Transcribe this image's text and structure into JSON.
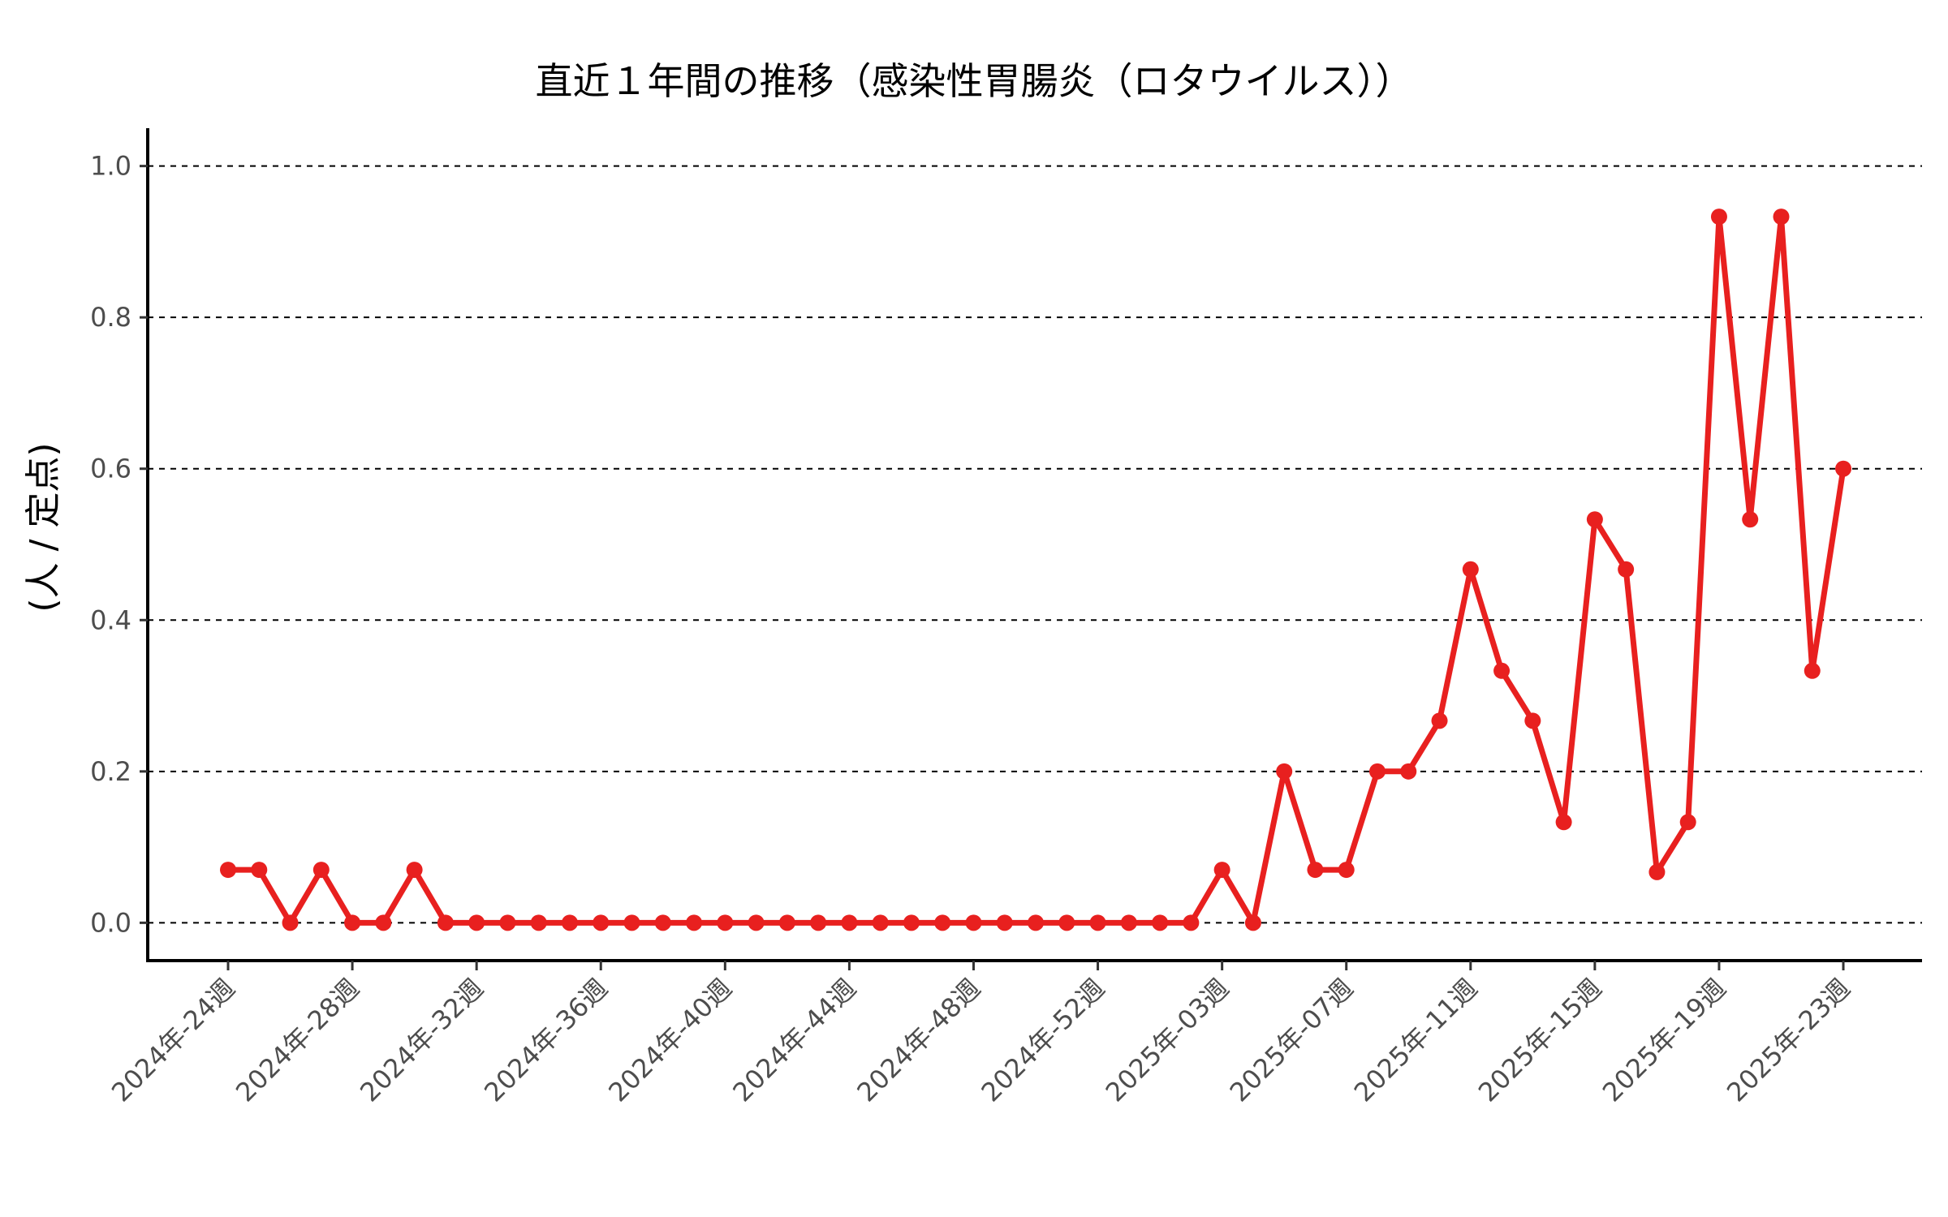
{
  "chart_data": {
    "type": "line",
    "title": "直近１年間の推移（感染性胃腸炎（ロタウイルス））",
    "xlabel": "",
    "ylabel": "(人 / 定点)",
    "ylim": [
      -0.05,
      1.05
    ],
    "yticks": [
      0.0,
      0.2,
      0.4,
      0.6,
      0.8,
      1.0
    ],
    "ytick_labels": [
      "0.0",
      "0.2",
      "0.4",
      "0.6",
      "0.8",
      "1.0"
    ],
    "xtick_labels": [
      "2024年-24週",
      "2024年-28週",
      "2024年-32週",
      "2024年-36週",
      "2024年-40週",
      "2024年-44週",
      "2024年-48週",
      "2024年-52週",
      "2025年-03週",
      "2025年-07週",
      "2025年-11週",
      "2025年-15週",
      "2025年-19週",
      "2025年-23週"
    ],
    "xtick_every": 4,
    "grid": "horizontal dashed",
    "series_color": "#e8201f",
    "series": [
      {
        "values": [
          0.07,
          0.07,
          0.0,
          0.07,
          0.0,
          0.0,
          0.07,
          0.0,
          0.0,
          0.0,
          0.0,
          0.0,
          0.0,
          0.0,
          0.0,
          0.0,
          0.0,
          0.0,
          0.0,
          0.0,
          0.0,
          0.0,
          0.0,
          0.0,
          0.0,
          0.0,
          0.0,
          0.0,
          0.0,
          0.0,
          0.0,
          0.0,
          0.07,
          0.0,
          0.2,
          0.07,
          0.07,
          0.2,
          0.2,
          0.267,
          0.467,
          0.333,
          0.267,
          0.133,
          0.533,
          0.467,
          0.067,
          0.133,
          0.933,
          0.533,
          0.933,
          0.333,
          0.6
        ]
      }
    ]
  }
}
